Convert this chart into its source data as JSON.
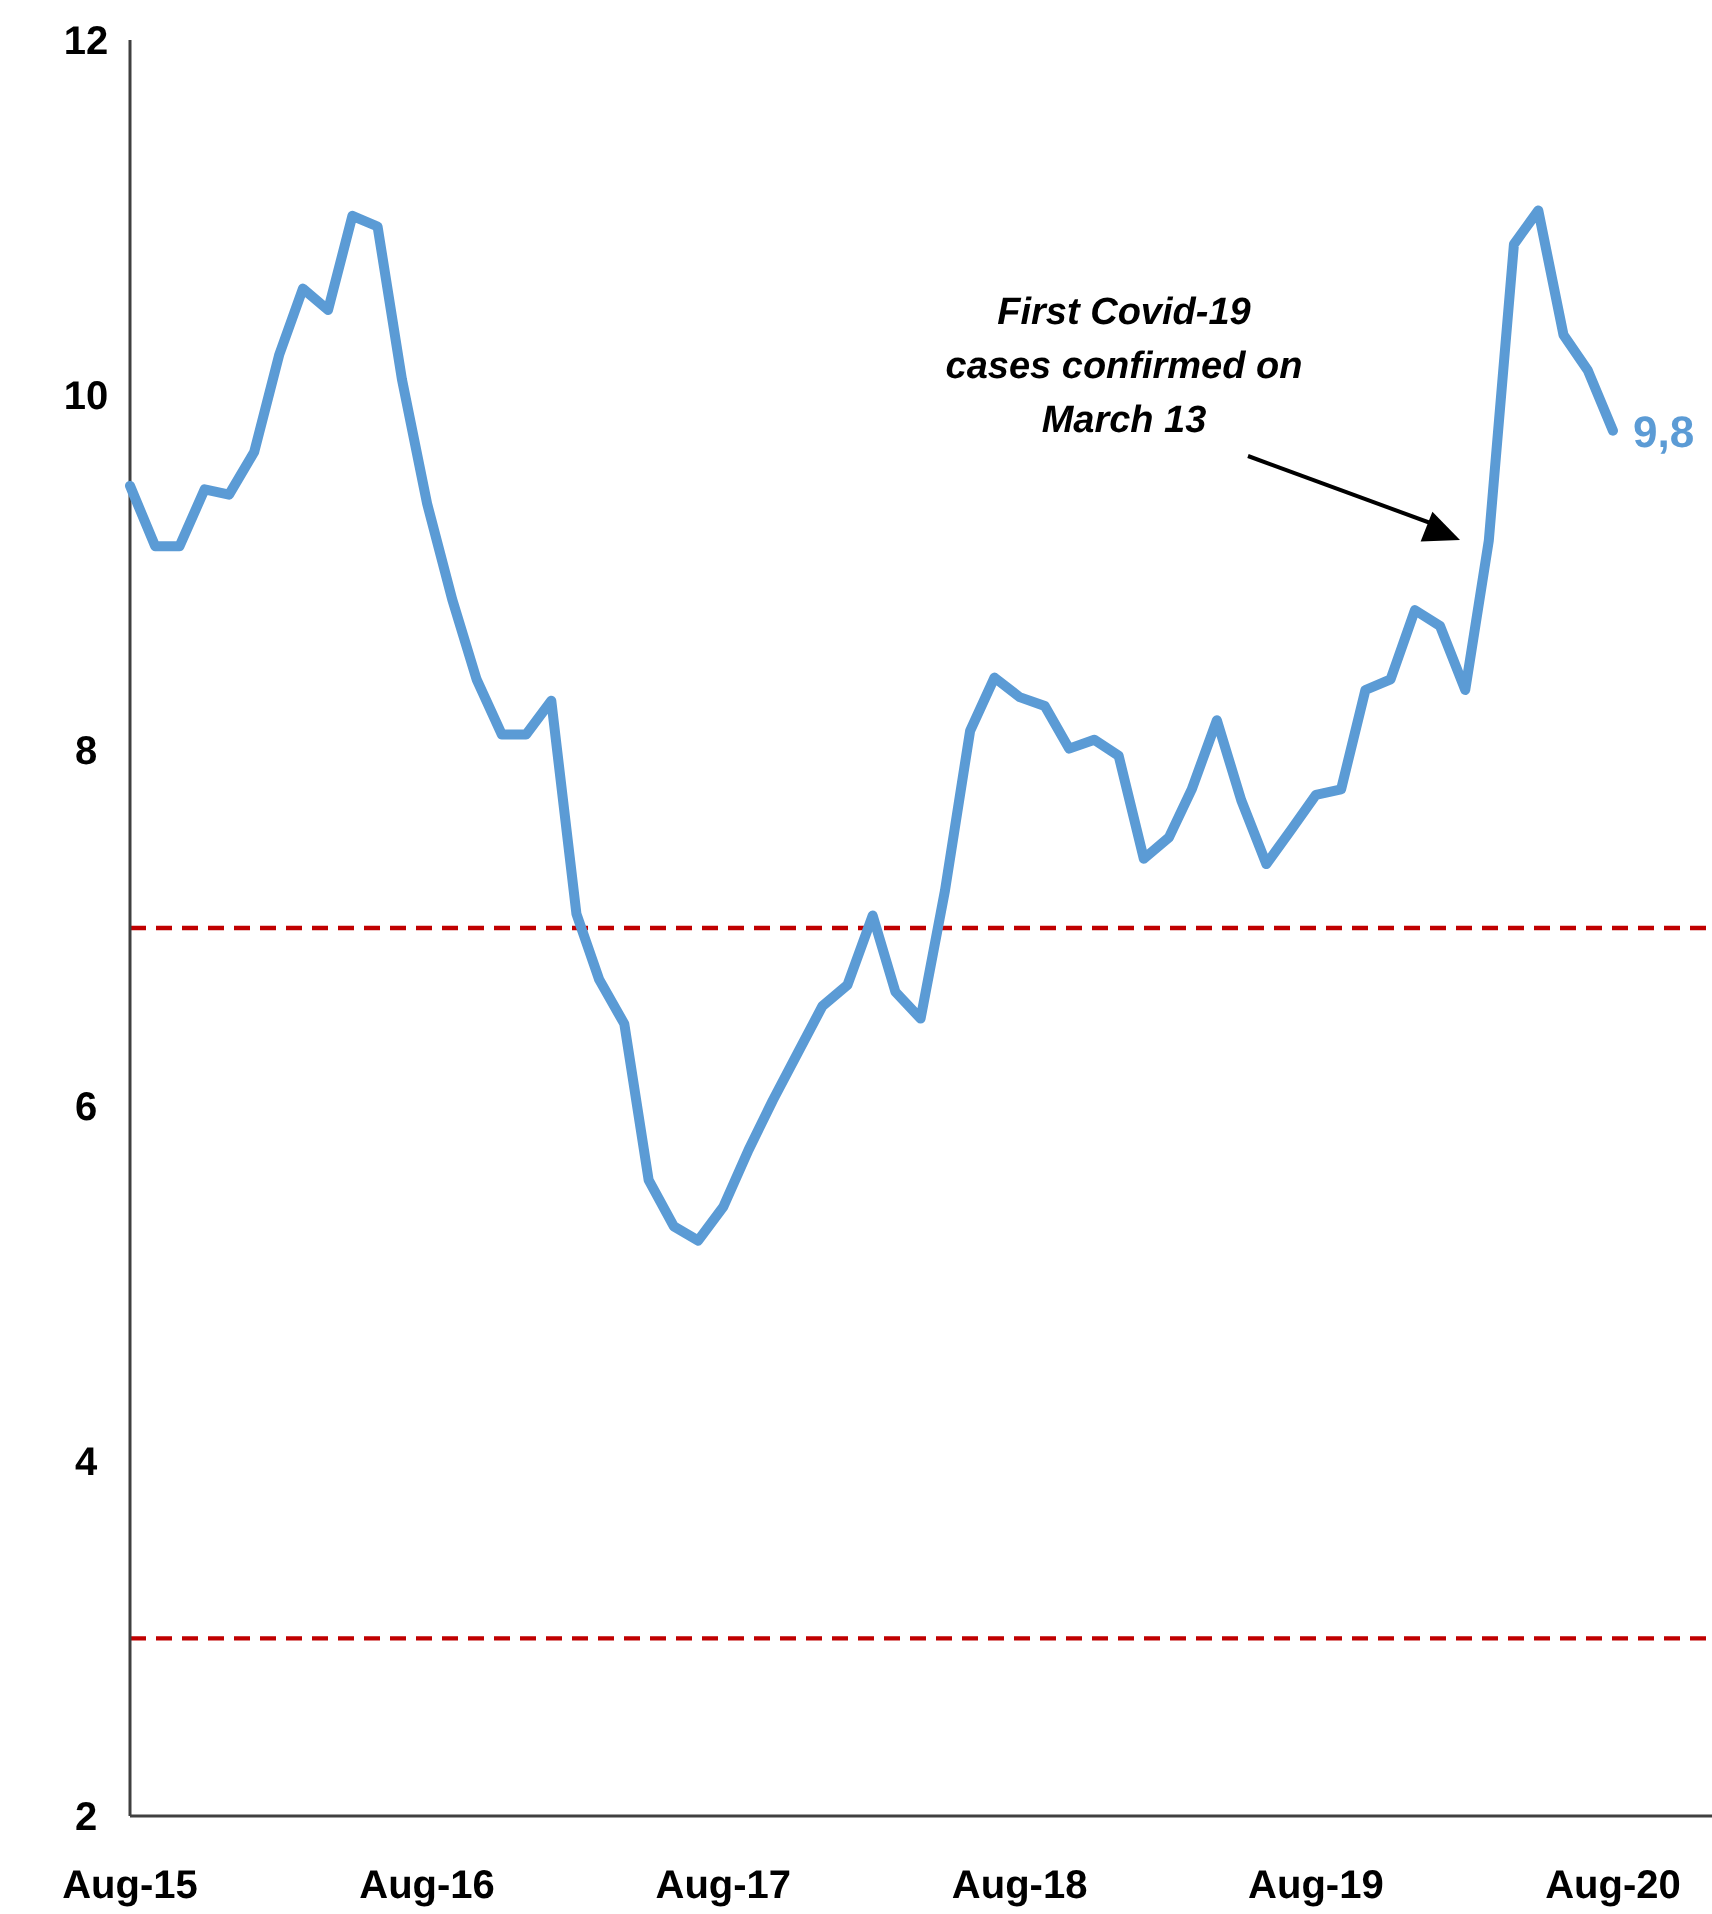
{
  "chart_data": {
    "type": "line",
    "x": [
      "2015-08",
      "2015-09",
      "2015-10",
      "2015-11",
      "2015-12",
      "2016-01",
      "2016-02",
      "2016-03",
      "2016-04",
      "2016-05",
      "2016-06",
      "2016-07",
      "2016-08",
      "2016-09",
      "2016-10",
      "2016-11",
      "2016-12",
      "2017-01",
      "2017-02",
      "2017-03",
      "2017-04",
      "2017-05",
      "2017-06",
      "2017-07",
      "2017-08",
      "2017-09",
      "2017-10",
      "2017-11",
      "2017-12",
      "2018-01",
      "2018-02",
      "2018-03",
      "2018-04",
      "2018-05",
      "2018-06",
      "2018-07",
      "2018-08",
      "2018-09",
      "2018-10",
      "2018-11",
      "2018-12",
      "2019-01",
      "2019-02",
      "2019-03",
      "2019-04",
      "2019-05",
      "2019-06",
      "2019-07",
      "2019-08",
      "2019-09",
      "2019-10",
      "2019-11",
      "2019-12",
      "2020-01",
      "2020-02",
      "2020-03",
      "2020-04",
      "2020-05",
      "2020-06",
      "2020-07",
      "2020-08"
    ],
    "series": [
      {
        "color": "#5b9bd5",
        "values": [
          9.49,
          9.15,
          9.15,
          9.47,
          9.44,
          9.68,
          10.23,
          10.6,
          10.48,
          11.01,
          10.95,
          10.09,
          9.39,
          8.85,
          8.4,
          8.09,
          8.09,
          8.28,
          7.08,
          6.71,
          6.46,
          5.58,
          5.32,
          5.24,
          5.43,
          5.75,
          6.03,
          6.3,
          6.56,
          6.68,
          7.07,
          6.64,
          6.49,
          7.21,
          8.11,
          8.41,
          8.3,
          8.25,
          8.01,
          8.06,
          7.97,
          7.39,
          7.51,
          7.78,
          8.17,
          7.72,
          7.36,
          7.55,
          7.75,
          7.78,
          8.34,
          8.4,
          8.79,
          8.7,
          8.34,
          9.18,
          10.85,
          11.04,
          10.34,
          10.14,
          9.8
        ],
        "value_labels": [
          null,
          null,
          null,
          null,
          null,
          null,
          null,
          null,
          null,
          null,
          null,
          null,
          null,
          null,
          null,
          null,
          null,
          null,
          null,
          null,
          null,
          null,
          null,
          null,
          null,
          null,
          null,
          null,
          null,
          null,
          null,
          null,
          null,
          null,
          null,
          null,
          null,
          null,
          null,
          null,
          null,
          null,
          null,
          null,
          null,
          null,
          null,
          null,
          null,
          null,
          null,
          null,
          null,
          null,
          null,
          null,
          null,
          null,
          null,
          null,
          "9,8"
        ]
      }
    ],
    "xlim": [
      "2015-08",
      "2020-12"
    ],
    "xticks": [
      {
        "value": "2015-08",
        "label": "Aug-15"
      },
      {
        "value": "2016-08",
        "label": "Aug-16"
      },
      {
        "value": "2017-08",
        "label": "Aug-17"
      },
      {
        "value": "2018-08",
        "label": "Aug-18"
      },
      {
        "value": "2019-08",
        "label": "Aug-19"
      },
      {
        "value": "2020-08",
        "label": "Aug-20"
      }
    ],
    "ylim": [
      2,
      12
    ],
    "yticks": [
      2,
      4,
      6,
      8,
      10,
      12
    ],
    "grid": false,
    "marker": "none",
    "line_style": "solid",
    "ref_lines": [
      {
        "axis": "y",
        "value": 7,
        "color": "#c00000",
        "line_style": "dashed"
      },
      {
        "axis": "y",
        "value": 3,
        "color": "#c00000",
        "line_style": "dashed"
      }
    ],
    "annotations": [
      "First Covid-19\ncases confirmed on\nMarch 13"
    ]
  }
}
